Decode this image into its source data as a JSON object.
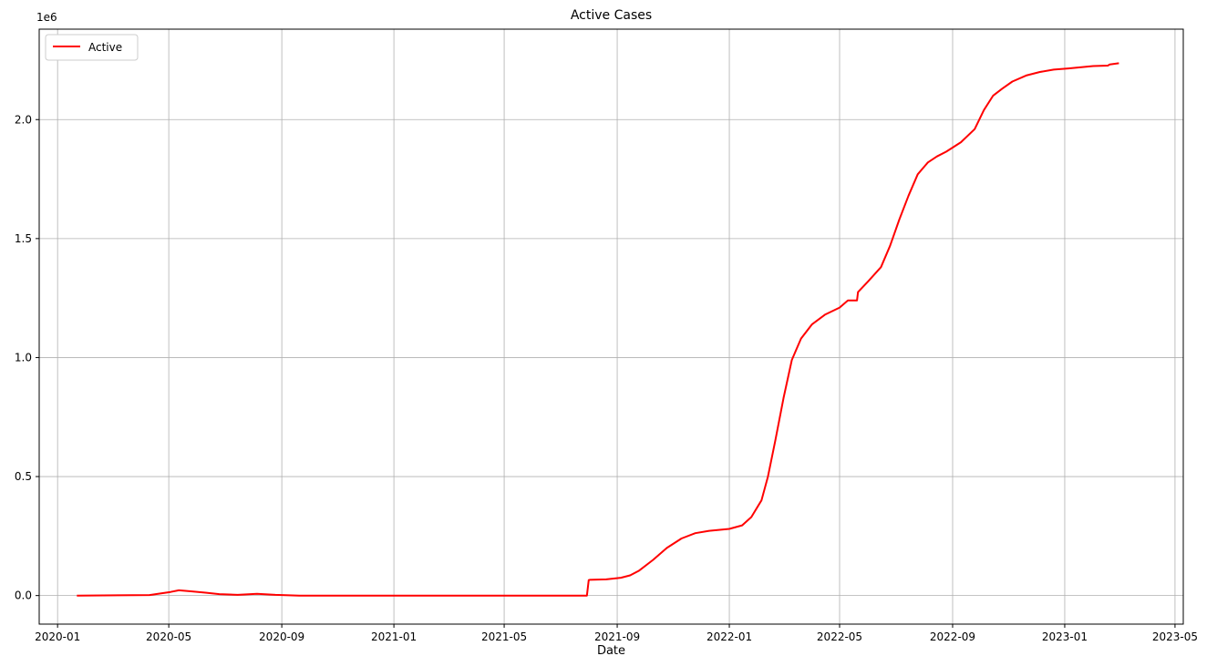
{
  "chart_data": {
    "type": "line",
    "title": "Active Cases",
    "xlabel": "Date",
    "ylabel": "",
    "y_offset_label": "1e6",
    "x_range": [
      "2019-12-12",
      "2023-05-10"
    ],
    "ylim": [
      -0.12,
      2.38
    ],
    "y_ticks": [
      0.0,
      0.5,
      1.0,
      1.5,
      2.0
    ],
    "y_tick_labels": [
      "0.0",
      "0.5",
      "1.0",
      "1.5",
      "2.0"
    ],
    "x_ticks": [
      "2020-01-01",
      "2020-05-01",
      "2020-09-01",
      "2021-01-01",
      "2021-05-01",
      "2021-09-01",
      "2022-01-01",
      "2022-05-01",
      "2022-09-01",
      "2023-01-01",
      "2023-05-01"
    ],
    "x_tick_labels": [
      "2020-01",
      "2020-05",
      "2020-09",
      "2021-01",
      "2021-05",
      "2021-09",
      "2022-01",
      "2022-05",
      "2022-09",
      "2023-01",
      "2023-05"
    ],
    "grid": true,
    "legend_position": "upper-left",
    "series": [
      {
        "name": "Active",
        "color": "#ff0000",
        "x": [
          "2020-01-22",
          "2020-04-10",
          "2020-05-03",
          "2020-05-12",
          "2020-05-25",
          "2020-06-10",
          "2020-06-25",
          "2020-07-15",
          "2020-08-05",
          "2020-08-25",
          "2020-09-20",
          "2021-07-30",
          "2021-08-01",
          "2021-08-02",
          "2021-08-20",
          "2021-09-05",
          "2021-09-15",
          "2021-09-25",
          "2021-10-10",
          "2021-10-25",
          "2021-11-10",
          "2021-11-25",
          "2021-12-10",
          "2022-01-01",
          "2022-01-15",
          "2022-01-25",
          "2022-02-05",
          "2022-02-12",
          "2022-02-20",
          "2022-03-01",
          "2022-03-10",
          "2022-03-20",
          "2022-04-01",
          "2022-04-15",
          "2022-05-01",
          "2022-05-10",
          "2022-05-20",
          "2022-05-21",
          "2022-06-01",
          "2022-06-15",
          "2022-06-25",
          "2022-07-05",
          "2022-07-15",
          "2022-07-25",
          "2022-08-05",
          "2022-08-15",
          "2022-08-25",
          "2022-09-10",
          "2022-09-25",
          "2022-10-05",
          "2022-10-15",
          "2022-10-25",
          "2022-11-05",
          "2022-11-20",
          "2022-12-05",
          "2022-12-20",
          "2023-01-05",
          "2023-02-01",
          "2023-02-17",
          "2023-02-19",
          "2023-03-01"
        ],
        "values": [
          0.0,
          0.002,
          0.015,
          0.022,
          0.018,
          0.012,
          0.006,
          0.003,
          0.007,
          0.003,
          0.0,
          0.0,
          0.065,
          0.066,
          0.068,
          0.075,
          0.085,
          0.105,
          0.15,
          0.2,
          0.24,
          0.262,
          0.272,
          0.28,
          0.295,
          0.33,
          0.4,
          0.5,
          0.65,
          0.83,
          0.99,
          1.08,
          1.14,
          1.18,
          1.21,
          1.24,
          1.24,
          1.275,
          1.32,
          1.38,
          1.47,
          1.58,
          1.68,
          1.77,
          1.82,
          1.845,
          1.865,
          1.905,
          1.96,
          2.04,
          2.1,
          2.13,
          2.16,
          2.185,
          2.2,
          2.21,
          2.215,
          2.225,
          2.227,
          2.232,
          2.237
        ]
      }
    ]
  }
}
